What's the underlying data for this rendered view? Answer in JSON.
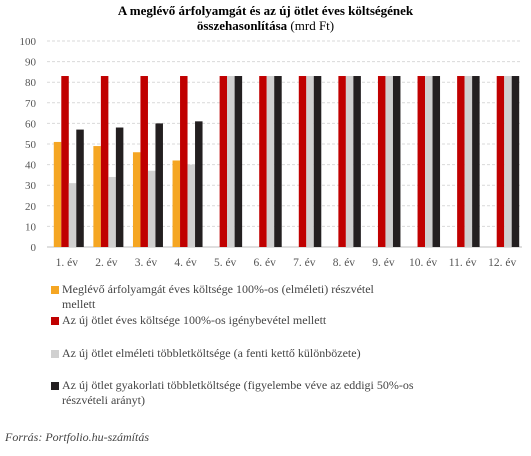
{
  "title_line1": "A meglévő árfolyamgát és az új ötlet éves költségének",
  "title_line2_bold": "összehasonlítása",
  "title_line2_rest": " (mrd Ft)",
  "source": "Forrás: Portfolio.hu-számítás",
  "colors": {
    "meglevo": "#f5a623",
    "uj_eves": "#c00000",
    "elmeleti": "#d0d0d0",
    "gyakorlati": "#231f20"
  },
  "chart_data": {
    "type": "bar",
    "title": "A meglévő árfolyamgát és az új ötlet éves költségének összehasonlítása (mrd Ft)",
    "categories": [
      "1. év",
      "2. év",
      "3. év",
      "4. év",
      "5. év",
      "6. év",
      "7. év",
      "8. év",
      "9. év",
      "10. év",
      "11. év",
      "12. év"
    ],
    "ylim": [
      0,
      100
    ],
    "yticks": [
      0,
      10,
      20,
      30,
      40,
      50,
      60,
      70,
      80,
      90,
      100
    ],
    "grid": true,
    "legend_position": "bottom",
    "series": [
      {
        "name": "Meglévő árfolyamgát éves költsége 100%-os (elméleti) részvétel mellett",
        "color": "#f5a623",
        "values": [
          51,
          49,
          46,
          42,
          null,
          null,
          null,
          null,
          null,
          null,
          null,
          null
        ]
      },
      {
        "name": "Az új ötlet éves költsége 100%-os igénybevétel mellett",
        "color": "#c00000",
        "values": [
          83,
          83,
          83,
          83,
          83,
          83,
          83,
          83,
          83,
          83,
          83,
          83
        ]
      },
      {
        "name": "Az új ötlet elméleti többletköltsége (a fenti kettő különbözete)",
        "color": "#d0d0d0",
        "values": [
          31,
          34,
          37,
          40,
          83,
          83,
          83,
          83,
          83,
          83,
          83,
          83
        ]
      },
      {
        "name": "Az új ötlet gyakorlati többletköltsége (figyelembe véve az eddigi 50%-os részvételi arányt)",
        "color": "#231f20",
        "values": [
          57,
          58,
          60,
          61,
          83,
          83,
          83,
          83,
          83,
          83,
          83,
          83
        ]
      }
    ]
  },
  "legend": [
    {
      "line1": "Meglévő árfolyamgát éves költsége 100%-os (elméleti) részvétel",
      "line2": "mellett"
    },
    {
      "line1": "Az új ötlet éves költsége 100%-os igénybevétel mellett",
      "line2": ""
    },
    {
      "line1": "Az új ötlet elméleti többletköltsége (a fenti kettő különbözete)",
      "line2": ""
    },
    {
      "line1": "Az új ötlet gyakorlati többletköltsége (figyelembe véve az eddigi 50%-os",
      "line2": "részvételi arányt)"
    }
  ]
}
